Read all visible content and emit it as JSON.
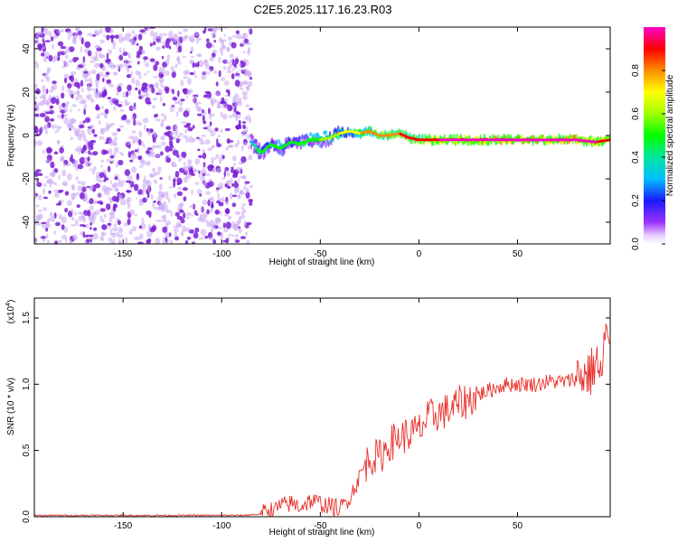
{
  "title": "C2E5.2025.117.16.23.R03",
  "colors": {
    "snr_line": "#e8302a",
    "scatter_strong": "#7a1fd6",
    "scatter_weak": "#c9a6f2"
  },
  "chart_data": [
    {
      "type": "heatmap",
      "xlabel": "Height of straight line (km)",
      "ylabel": "Frequency (Hz)",
      "xlim": [
        -195,
        97
      ],
      "ylim": [
        -50,
        50
      ],
      "xticks": [
        "-150",
        "-100",
        "-50",
        "0",
        "50"
      ],
      "xtick_values": [
        -150,
        -100,
        -50,
        0,
        50
      ],
      "yticks": [
        "-40",
        "-20",
        "0",
        "20",
        "40"
      ],
      "ytick_values": [
        -40,
        -20,
        0,
        20,
        40
      ],
      "grid": false,
      "colorbar": {
        "label": "Normalized spectral amplitude",
        "range": [
          0,
          1
        ],
        "ticks": [
          "0.0",
          "0.2",
          "0.4",
          "0.6",
          "0.8"
        ],
        "tick_values": [
          0.0,
          0.2,
          0.4,
          0.6,
          0.8
        ]
      },
      "noise_region": {
        "x_from": -195,
        "x_to": -85,
        "amplitude": 0.1
      },
      "signal_track": {
        "x": [
          -85,
          -80,
          -75,
          -70,
          -65,
          -60,
          -55,
          -50,
          -45,
          -40,
          -35,
          -30,
          -25,
          -20,
          -15,
          -10,
          -5,
          0,
          10,
          20,
          30,
          40,
          50,
          60,
          70,
          80,
          90,
          97
        ],
        "frequency": [
          -3,
          -8,
          -4,
          -6,
          -3,
          -4,
          -2,
          -2,
          -1,
          1,
          2,
          1,
          2,
          0,
          0,
          1,
          -1,
          -2,
          -2,
          -2,
          -2,
          -2,
          -2,
          -2,
          -2,
          -2,
          -3,
          -2
        ],
        "amplitude": [
          0.3,
          0.45,
          0.4,
          0.45,
          0.4,
          0.45,
          0.45,
          0.5,
          0.55,
          0.6,
          0.65,
          0.7,
          0.75,
          0.8,
          0.8,
          0.8,
          0.82,
          0.85,
          0.9,
          0.92,
          0.92,
          0.93,
          0.95,
          0.95,
          0.95,
          0.95,
          0.9,
          0.9
        ]
      }
    },
    {
      "type": "line",
      "xlabel": "Height of straight line (km)",
      "ylabel": "SNR (10 * v/v)",
      "y_multiplier": "(x10",
      "y_multiplier_exp": "4",
      "xlim": [
        -195,
        97
      ],
      "ylim": [
        0,
        1.65
      ],
      "xticks": [
        "-150",
        "-100",
        "-50",
        "0",
        "50"
      ],
      "xtick_values": [
        -150,
        -100,
        -50,
        0,
        50
      ],
      "yticks": [
        "0.0",
        "0.5",
        "1.0",
        "1.5"
      ],
      "ytick_values": [
        0.0,
        0.5,
        1.0,
        1.5
      ],
      "grid": false,
      "series": [
        {
          "x": [
            -195,
            -180,
            -160,
            -140,
            -120,
            -100,
            -90,
            -80,
            -75,
            -70,
            -65,
            -60,
            -55,
            -50,
            -45,
            -40,
            -35,
            -30,
            -25,
            -20,
            -15,
            -10,
            -5,
            0,
            5,
            10,
            15,
            20,
            25,
            30,
            35,
            40,
            45,
            50,
            55,
            60,
            65,
            70,
            75,
            80,
            85,
            88,
            90,
            92,
            95,
            97
          ],
          "y": [
            0.01,
            0.01,
            0.01,
            0.01,
            0.01,
            0.01,
            0.01,
            0.02,
            0.05,
            0.08,
            0.1,
            0.08,
            0.12,
            0.1,
            0.08,
            0.06,
            0.15,
            0.3,
            0.45,
            0.45,
            0.55,
            0.6,
            0.62,
            0.65,
            0.75,
            0.78,
            0.8,
            0.85,
            0.88,
            0.92,
            0.95,
            0.98,
            1.0,
            1.0,
            1.0,
            1.0,
            1.02,
            1.02,
            1.02,
            1.05,
            1.08,
            1.1,
            1.2,
            1.0,
            1.45,
            1.1
          ]
        }
      ]
    }
  ]
}
